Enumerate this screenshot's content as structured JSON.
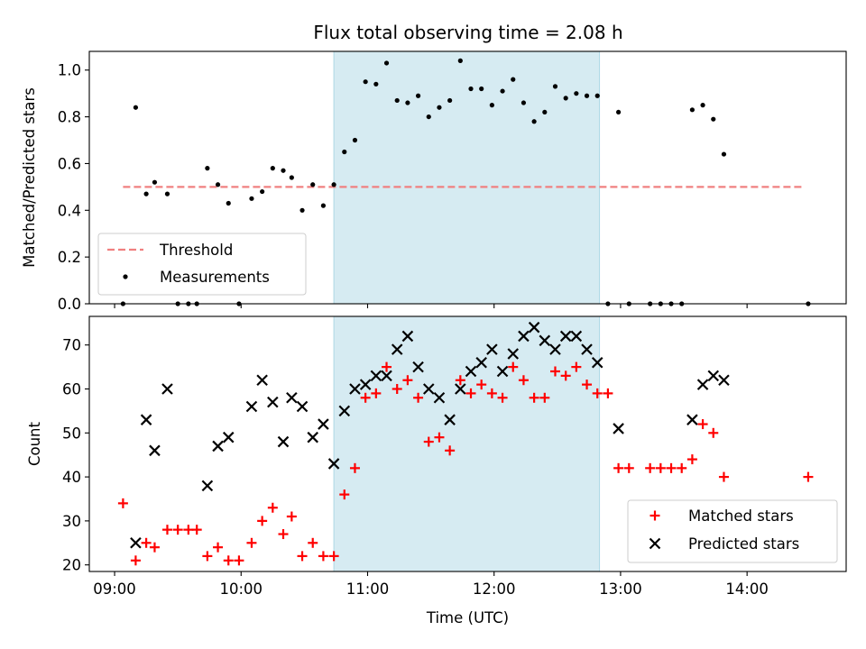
{
  "figure": {
    "title": "Flux total observing time = 2.08 h",
    "colors": {
      "shade": "#add8e6",
      "threshold": "#f08080",
      "measurements": "#000000",
      "matched": "#ff0000",
      "predicted": "#000000"
    }
  },
  "chart_data": [
    {
      "type": "scatter",
      "ylabel": "Matched/Predicted stars",
      "xlim": [
        "08:48",
        "14:47"
      ],
      "ylim": [
        0,
        1.08
      ],
      "yticks": [
        0.0,
        0.2,
        0.4,
        0.6,
        0.8,
        1.0
      ],
      "ytick_labels": [
        "0.0",
        "0.2",
        "0.4",
        "0.6",
        "0.8",
        "1.0"
      ],
      "shaded_region": [
        "10:44",
        "12:50"
      ],
      "threshold": {
        "name": "Threshold",
        "y": 0.5,
        "x": [
          "09:04",
          "14:26"
        ]
      },
      "legend": {
        "placement": "lower-left",
        "entries": [
          "Threshold",
          "Measurements"
        ]
      },
      "series": [
        {
          "name": "Measurements",
          "points": [
            [
              "09:04",
              0.0
            ],
            [
              "09:10",
              0.84
            ],
            [
              "09:15",
              0.47
            ],
            [
              "09:19",
              0.52
            ],
            [
              "09:25",
              0.47
            ],
            [
              "09:30",
              0.0
            ],
            [
              "09:35",
              0.0
            ],
            [
              "09:39",
              0.0
            ],
            [
              "09:44",
              0.58
            ],
            [
              "09:49",
              0.51
            ],
            [
              "09:54",
              0.43
            ],
            [
              "09:59",
              0.0
            ],
            [
              "10:05",
              0.45
            ],
            [
              "10:10",
              0.48
            ],
            [
              "10:15",
              0.58
            ],
            [
              "10:20",
              0.57
            ],
            [
              "10:24",
              0.54
            ],
            [
              "10:29",
              0.4
            ],
            [
              "10:34",
              0.51
            ],
            [
              "10:39",
              0.42
            ],
            [
              "10:44",
              0.51
            ],
            [
              "10:49",
              0.65
            ],
            [
              "10:54",
              0.7
            ],
            [
              "10:59",
              0.95
            ],
            [
              "11:04",
              0.94
            ],
            [
              "11:09",
              1.03
            ],
            [
              "11:14",
              0.87
            ],
            [
              "11:19",
              0.86
            ],
            [
              "11:24",
              0.89
            ],
            [
              "11:29",
              0.8
            ],
            [
              "11:34",
              0.84
            ],
            [
              "11:39",
              0.87
            ],
            [
              "11:44",
              1.04
            ],
            [
              "11:49",
              0.92
            ],
            [
              "11:54",
              0.92
            ],
            [
              "11:59",
              0.85
            ],
            [
              "12:04",
              0.91
            ],
            [
              "12:09",
              0.96
            ],
            [
              "12:14",
              0.86
            ],
            [
              "12:19",
              0.78
            ],
            [
              "12:24",
              0.82
            ],
            [
              "12:29",
              0.93
            ],
            [
              "12:34",
              0.88
            ],
            [
              "12:39",
              0.9
            ],
            [
              "12:44",
              0.89
            ],
            [
              "12:49",
              0.89
            ],
            [
              "12:54",
              0.0
            ],
            [
              "12:59",
              0.82
            ],
            [
              "13:04",
              0.0
            ],
            [
              "13:14",
              0.0
            ],
            [
              "13:19",
              0.0
            ],
            [
              "13:24",
              0.0
            ],
            [
              "13:29",
              0.0
            ],
            [
              "13:34",
              0.83
            ],
            [
              "13:39",
              0.85
            ],
            [
              "13:44",
              0.79
            ],
            [
              "13:49",
              0.64
            ],
            [
              "14:29",
              0.0
            ]
          ]
        }
      ]
    },
    {
      "type": "scatter",
      "xlabel": "Time (UTC)",
      "ylabel": "Count",
      "xlim": [
        "08:48",
        "14:47"
      ],
      "ylim": [
        18.5,
        76.5
      ],
      "yticks": [
        20,
        30,
        40,
        50,
        60,
        70
      ],
      "ytick_labels": [
        "20",
        "30",
        "40",
        "50",
        "60",
        "70"
      ],
      "xticks": [
        "09:00",
        "10:00",
        "11:00",
        "12:00",
        "13:00",
        "14:00"
      ],
      "xtick_labels": [
        "09:00",
        "10:00",
        "11:00",
        "12:00",
        "13:00",
        "14:00"
      ],
      "shaded_region": [
        "10:44",
        "12:50"
      ],
      "legend": {
        "placement": "lower-right",
        "entries": [
          "Matched stars",
          "Predicted stars"
        ]
      },
      "series": [
        {
          "name": "Matched stars",
          "points": [
            [
              "09:04",
              34
            ],
            [
              "09:10",
              21
            ],
            [
              "09:15",
              25
            ],
            [
              "09:19",
              24
            ],
            [
              "09:25",
              28
            ],
            [
              "09:30",
              28
            ],
            [
              "09:35",
              28
            ],
            [
              "09:39",
              28
            ],
            [
              "09:44",
              22
            ],
            [
              "09:49",
              24
            ],
            [
              "09:54",
              21
            ],
            [
              "09:59",
              21
            ],
            [
              "10:05",
              25
            ],
            [
              "10:10",
              30
            ],
            [
              "10:15",
              33
            ],
            [
              "10:20",
              27
            ],
            [
              "10:24",
              31
            ],
            [
              "10:29",
              22
            ],
            [
              "10:34",
              25
            ],
            [
              "10:39",
              22
            ],
            [
              "10:44",
              22
            ],
            [
              "10:49",
              36
            ],
            [
              "10:54",
              42
            ],
            [
              "10:59",
              58
            ],
            [
              "11:04",
              59
            ],
            [
              "11:09",
              65
            ],
            [
              "11:14",
              60
            ],
            [
              "11:19",
              62
            ],
            [
              "11:24",
              58
            ],
            [
              "11:29",
              48
            ],
            [
              "11:34",
              49
            ],
            [
              "11:39",
              46
            ],
            [
              "11:44",
              62
            ],
            [
              "11:49",
              59
            ],
            [
              "11:54",
              61
            ],
            [
              "11:59",
              59
            ],
            [
              "12:04",
              58
            ],
            [
              "12:09",
              65
            ],
            [
              "12:14",
              62
            ],
            [
              "12:19",
              58
            ],
            [
              "12:24",
              58
            ],
            [
              "12:29",
              64
            ],
            [
              "12:34",
              63
            ],
            [
              "12:39",
              65
            ],
            [
              "12:44",
              61
            ],
            [
              "12:49",
              59
            ],
            [
              "12:54",
              59
            ],
            [
              "12:59",
              42
            ],
            [
              "13:04",
              42
            ],
            [
              "13:14",
              42
            ],
            [
              "13:19",
              42
            ],
            [
              "13:24",
              42
            ],
            [
              "13:29",
              42
            ],
            [
              "13:34",
              44
            ],
            [
              "13:39",
              52
            ],
            [
              "13:44",
              50
            ],
            [
              "13:49",
              40
            ],
            [
              "14:29",
              40
            ]
          ]
        },
        {
          "name": "Predicted stars",
          "points": [
            [
              "09:10",
              25
            ],
            [
              "09:15",
              53
            ],
            [
              "09:19",
              46
            ],
            [
              "09:25",
              60
            ],
            [
              "09:44",
              38
            ],
            [
              "09:49",
              47
            ],
            [
              "09:54",
              49
            ],
            [
              "10:05",
              56
            ],
            [
              "10:10",
              62
            ],
            [
              "10:15",
              57
            ],
            [
              "10:20",
              48
            ],
            [
              "10:24",
              58
            ],
            [
              "10:29",
              56
            ],
            [
              "10:34",
              49
            ],
            [
              "10:39",
              52
            ],
            [
              "10:44",
              43
            ],
            [
              "10:49",
              55
            ],
            [
              "10:54",
              60
            ],
            [
              "10:59",
              61
            ],
            [
              "11:04",
              63
            ],
            [
              "11:09",
              63
            ],
            [
              "11:14",
              69
            ],
            [
              "11:19",
              72
            ],
            [
              "11:24",
              65
            ],
            [
              "11:29",
              60
            ],
            [
              "11:34",
              58
            ],
            [
              "11:39",
              53
            ],
            [
              "11:44",
              60
            ],
            [
              "11:49",
              64
            ],
            [
              "11:54",
              66
            ],
            [
              "11:59",
              69
            ],
            [
              "12:04",
              64
            ],
            [
              "12:09",
              68
            ],
            [
              "12:14",
              72
            ],
            [
              "12:19",
              74
            ],
            [
              "12:24",
              71
            ],
            [
              "12:29",
              69
            ],
            [
              "12:34",
              72
            ],
            [
              "12:39",
              72
            ],
            [
              "12:44",
              69
            ],
            [
              "12:49",
              66
            ],
            [
              "12:59",
              51
            ],
            [
              "13:34",
              53
            ],
            [
              "13:39",
              61
            ],
            [
              "13:44",
              63
            ],
            [
              "13:49",
              62
            ]
          ]
        }
      ]
    }
  ]
}
